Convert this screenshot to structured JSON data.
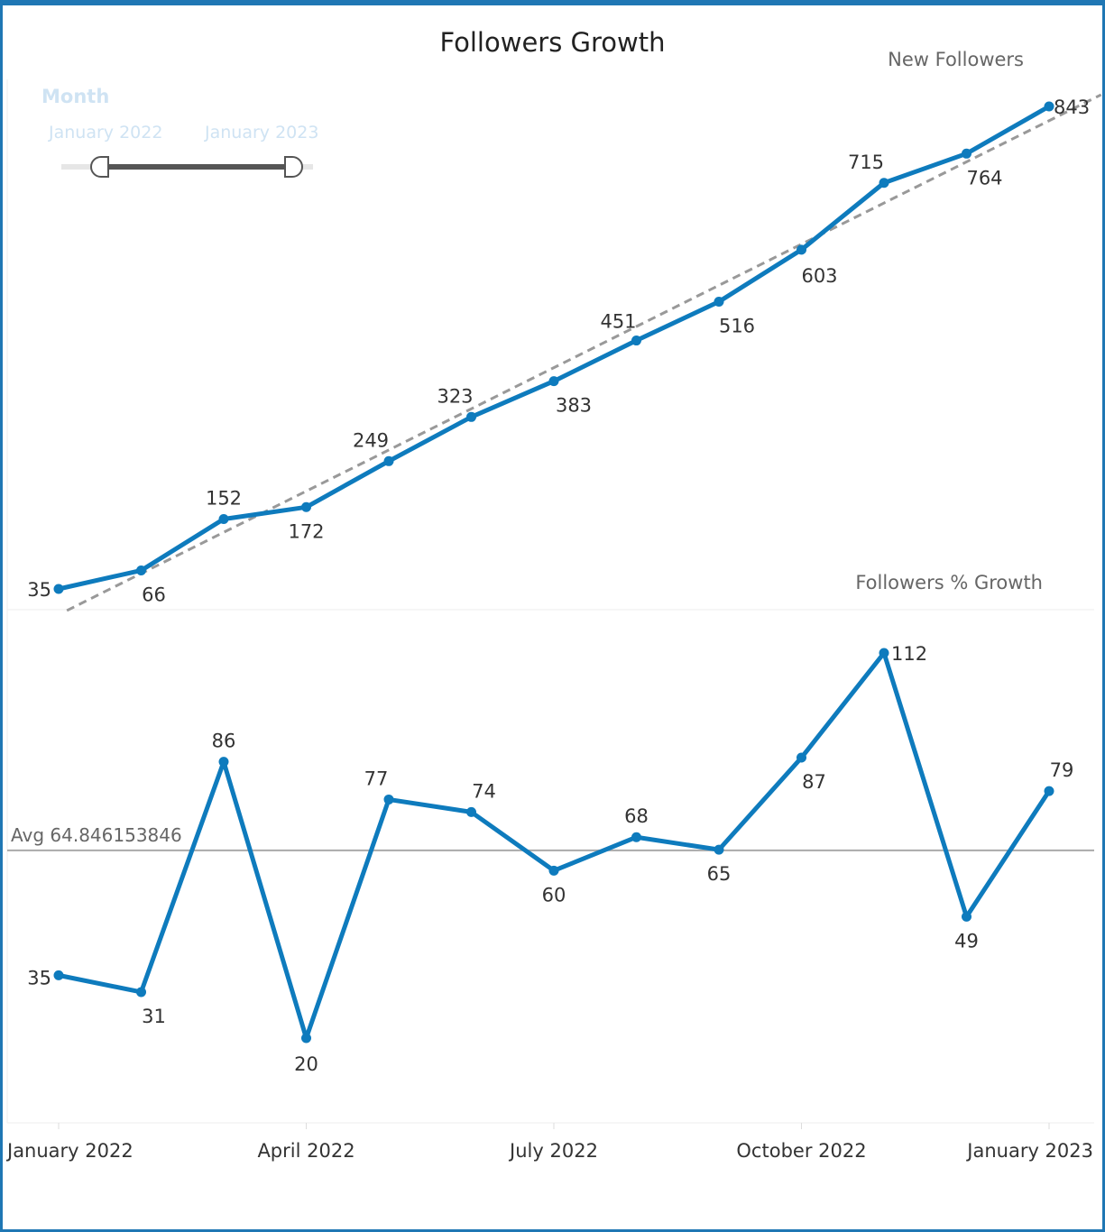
{
  "title": "Followers Growth",
  "filter": {
    "label": "Month",
    "start": "January 2022",
    "end": "January 2023"
  },
  "colors": {
    "line": "#0e7bbd",
    "trend": "#999999",
    "avg": "#aaaaaa",
    "frame": "#1f77b4"
  },
  "chart_data": [
    {
      "type": "line",
      "title": "New Followers",
      "x": [
        "2022-01",
        "2022-02",
        "2022-03",
        "2022-04",
        "2022-05",
        "2022-06",
        "2022-07",
        "2022-08",
        "2022-09",
        "2022-10",
        "2022-11",
        "2022-12",
        "2023-01"
      ],
      "values": [
        35,
        66,
        152,
        172,
        249,
        323,
        383,
        451,
        516,
        603,
        715,
        764,
        843
      ],
      "labels": [
        "35",
        "66",
        "152",
        "172",
        "249",
        "323",
        "383",
        "451",
        "516",
        "603",
        "715",
        "764",
        "843"
      ],
      "trend_line": true,
      "trend_style": "dashed"
    },
    {
      "type": "line",
      "title": "Followers % Growth",
      "x": [
        "2022-01",
        "2022-02",
        "2022-03",
        "2022-04",
        "2022-05",
        "2022-06",
        "2022-07",
        "2022-08",
        "2022-09",
        "2022-10",
        "2022-11",
        "2022-12",
        "2023-01"
      ],
      "values": [
        35,
        31,
        86,
        20,
        77,
        74,
        60,
        68,
        65,
        87,
        112,
        49,
        79
      ],
      "labels": [
        "35",
        "31",
        "86",
        "20",
        "77",
        "74",
        "60",
        "68",
        "65",
        "87",
        "112",
        "49",
        "79"
      ],
      "reference_line": {
        "label": "Avg 64.846153846",
        "value": 64.846153846
      },
      "xticks": [
        "January 2022",
        "April 2022",
        "July 2022",
        "October 2022",
        "January 2023"
      ]
    }
  ]
}
